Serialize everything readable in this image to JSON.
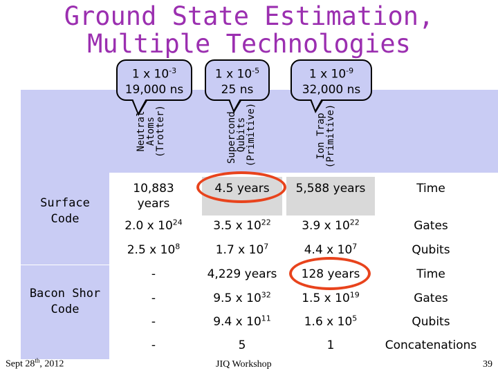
{
  "title": {
    "line1": "Ground State Estimation,",
    "line2": "Multiple Technologies"
  },
  "columns": [
    {
      "tech_line1": "Neutral",
      "tech_line2": "Atoms",
      "tech_line3": "(Trotter)",
      "error": "1 x 10",
      "error_exp": "-3",
      "time": "19,000 ns"
    },
    {
      "tech_line1": "Supercond.",
      "tech_line2": "Qubits",
      "tech_line3": "(Primitive)",
      "error": "1 x 10",
      "error_exp": "-5",
      "time": "25 ns"
    },
    {
      "tech_line1": "Ion Trap",
      "tech_line2": "(Primitive)",
      "tech_line3": "",
      "error": "1 x 10",
      "error_exp": "-9",
      "time": "32,000 ns"
    }
  ],
  "sections": [
    {
      "label_line1": "Surface",
      "label_line2": "Code"
    },
    {
      "label_line1": "Bacon Shor",
      "label_line2": "Code"
    }
  ],
  "rows": {
    "sc_time": {
      "c1": "10,883",
      "c1b": "years",
      "c2": "4.5 years",
      "c3": "5,588 years",
      "label": "Time"
    },
    "sc_gates": {
      "c1": "2.0 x 10",
      "c1e": "24",
      "c2": "3.5 x 10",
      "c2e": "22",
      "c3": "3.9 x 10",
      "c3e": "22",
      "label": "Gates"
    },
    "sc_qubits": {
      "c1": "2.5 x 10",
      "c1e": "8",
      "c2": "1.7 x 10",
      "c2e": "7",
      "c3": "4.4 x 10",
      "c3e": "7",
      "label": "Qubits"
    },
    "bs_time": {
      "c1": "-",
      "c2": "4,229 years",
      "c3": "128 years",
      "label": "Time"
    },
    "bs_gates": {
      "c1": "-",
      "c2": "9.5 x 10",
      "c2e": "32",
      "c3": "1.5 x 10",
      "c3e": "19",
      "label": "Gates"
    },
    "bs_qubits": {
      "c1": "-",
      "c2": "9.4 x 10",
      "c2e": "11",
      "c3": "1.6 x 10",
      "c3e": "5",
      "label": "Qubits"
    },
    "bs_concat": {
      "c1": "-",
      "c2": "5",
      "c3": "1",
      "label": "Concatenations"
    }
  },
  "footer": {
    "date": "Sept 28",
    "date_sup": "th",
    "date_year": ", 2012",
    "event": "JIQ Workshop",
    "page": "39"
  },
  "colors": {
    "title": "#9b2fb0",
    "band": "#c9ccf4",
    "highlight": "#e8431c",
    "gray_box": "#d9d9d9"
  }
}
